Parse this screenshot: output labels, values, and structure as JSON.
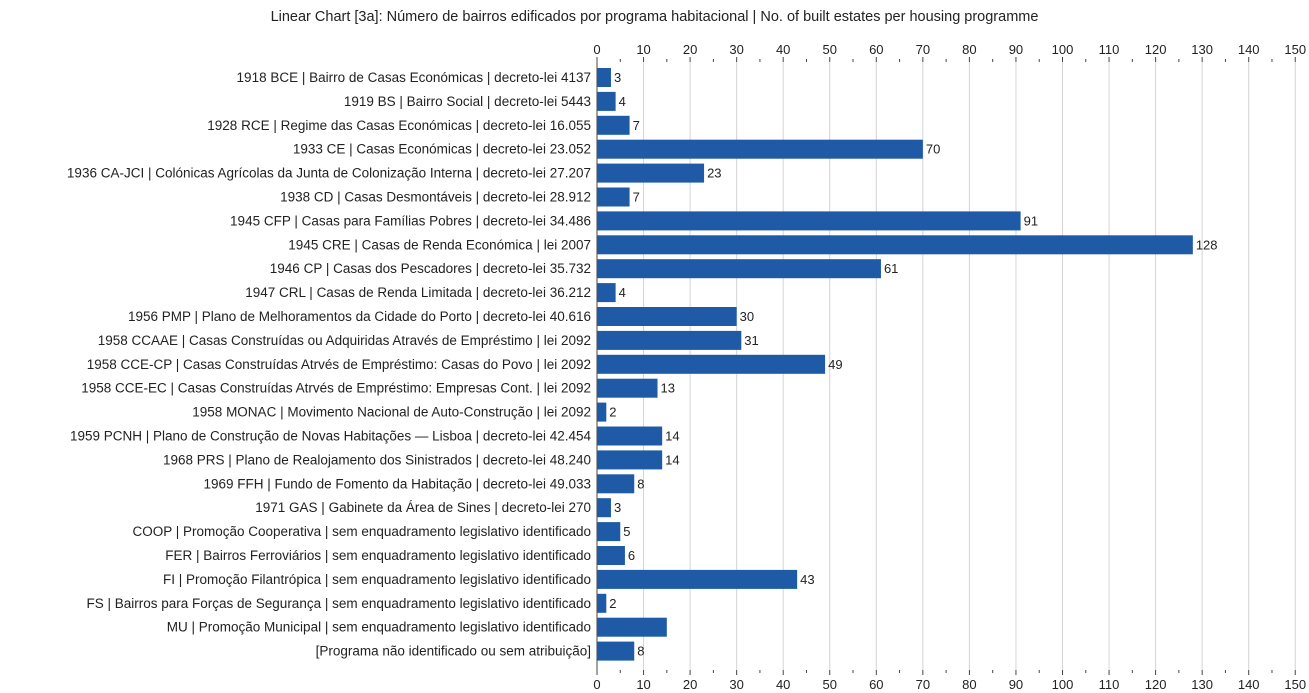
{
  "chart_data": {
    "type": "bar",
    "orientation": "horizontal",
    "title": "Linear Chart [3a]: Número de bairros edificados por programa habitacional | No. of built estates per housing programme",
    "xlabel": "",
    "ylabel": "",
    "xlim": [
      0,
      150
    ],
    "ticks": [
      "0",
      "10",
      "20",
      "30",
      "40",
      "50",
      "60",
      "70",
      "80",
      "90",
      "100",
      "110",
      "120",
      "130",
      "140",
      "150"
    ],
    "grid": true,
    "bar_color": "#1f5aa6",
    "categories": [
      "1918 BCE | Bairro de Casas Económicas | decreto-lei 4137",
      "1919 BS | Bairro Social | decreto-lei 5443",
      "1928 RCE | Regime das Casas Económicas | decreto-lei 16.055",
      "1933 CE | Casas Económicas | decreto-lei 23.052",
      "1936 CA-JCI | Colónicas Agrícolas da Junta de Colonização Interna | decreto-lei 27.207",
      "1938 CD | Casas Desmontáveis | decreto-lei 28.912",
      "1945 CFP | Casas para Famílias Pobres | decreto-lei 34.486",
      "1945 CRE | Casas de Renda Económica | lei 2007",
      "1946 CP | Casas dos Pescadores | decreto-lei 35.732",
      "1947 CRL | Casas de Renda Limitada | decreto-lei 36.212",
      "1956 PMP | Plano de Melhoramentos da Cidade do Porto | decreto-lei 40.616",
      "1958 CCAAE | Casas Construídas ou Adquiridas Através de Empréstimo | lei 2092",
      "1958 CCE-CP | Casas Construídas Atrvés de Empréstimo: Casas do Povo | lei 2092",
      "1958 CCE-EC | Casas Construídas Atrvés de Empréstimo: Empresas Cont. | lei 2092",
      "1958 MONAC | Movimento Nacional de Auto-Construção | lei 2092",
      "1959 PCNH | Plano de Construção de Novas Habitações — Lisboa | decreto-lei 42.454",
      "1968 PRS | Plano de Realojamento dos Sinistrados | decreto-lei 48.240",
      "1969 FFH | Fundo de Fomento da Habitação | decreto-lei 49.033",
      "1971 GAS | Gabinete da Área de Sines | decreto-lei 270",
      "COOP | Promoção Cooperativa | sem enquadramento legislativo identificado",
      "FER | Bairros Ferroviários | sem enquadramento legislativo identificado",
      "FI | Promoção Filantrópica | sem enquadramento legislativo identificado",
      "FS | Bairros para Forças de Segurança | sem enquadramento legislativo identificado",
      "MU | Promoção Municipal | sem enquadramento legislativo identificado",
      "[Programa não identificado ou sem atribuição]"
    ],
    "values": [
      3,
      4,
      7,
      70,
      23,
      7,
      91,
      128,
      61,
      4,
      30,
      31,
      49,
      13,
      2,
      14,
      14,
      8,
      3,
      5,
      6,
      43,
      2,
      15,
      8
    ],
    "value_labels": [
      "3",
      "4",
      "7",
      "70",
      "23",
      "7",
      "91",
      "128",
      "61",
      "4",
      "30",
      "31",
      "49",
      "13",
      "2",
      "14",
      "14",
      "8",
      "3",
      "5",
      "6",
      "43",
      "2",
      "",
      "8"
    ]
  }
}
